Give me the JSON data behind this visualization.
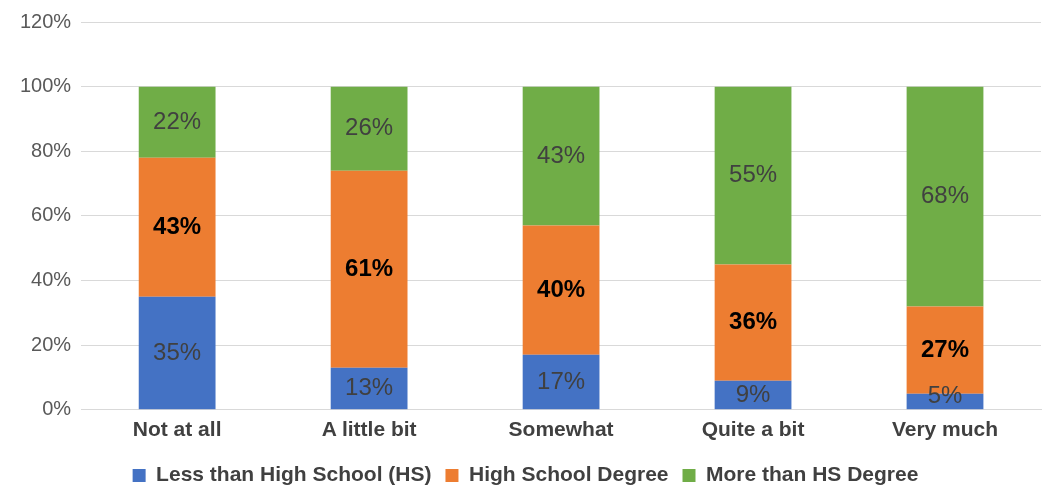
{
  "chart_data": {
    "type": "bar",
    "stacked": true,
    "categories": [
      "Not at all",
      "A little bit",
      "Somewhat",
      "Quite a bit",
      "Very much"
    ],
    "series": [
      {
        "name": "Less than High School (HS)",
        "color": "#4472c4",
        "values": [
          35,
          13,
          17,
          9,
          5
        ],
        "value_labels": [
          "35%",
          "13%",
          "17%",
          "9%",
          "5%"
        ]
      },
      {
        "name": "High School Degree",
        "color": "#ed7d31",
        "values": [
          43,
          61,
          40,
          36,
          27
        ],
        "value_labels": [
          "43%",
          "61%",
          "40%",
          "36%",
          "27%"
        ]
      },
      {
        "name": "More than HS Degree",
        "color": "#70ad47",
        "values": [
          22,
          26,
          43,
          55,
          68
        ],
        "value_labels": [
          "22%",
          "26%",
          "43%",
          "55%",
          "68%"
        ]
      }
    ],
    "ylim": [
      0,
      120
    ],
    "yticks": [
      {
        "value": 0,
        "label": "0%"
      },
      {
        "value": 20,
        "label": "20%"
      },
      {
        "value": 40,
        "label": "40%"
      },
      {
        "value": 60,
        "label": "60%"
      },
      {
        "value": 80,
        "label": "80%"
      },
      {
        "value": 100,
        "label": "100%"
      },
      {
        "value": 120,
        "label": "120%"
      }
    ],
    "grid": "y",
    "legend": "bottom"
  }
}
